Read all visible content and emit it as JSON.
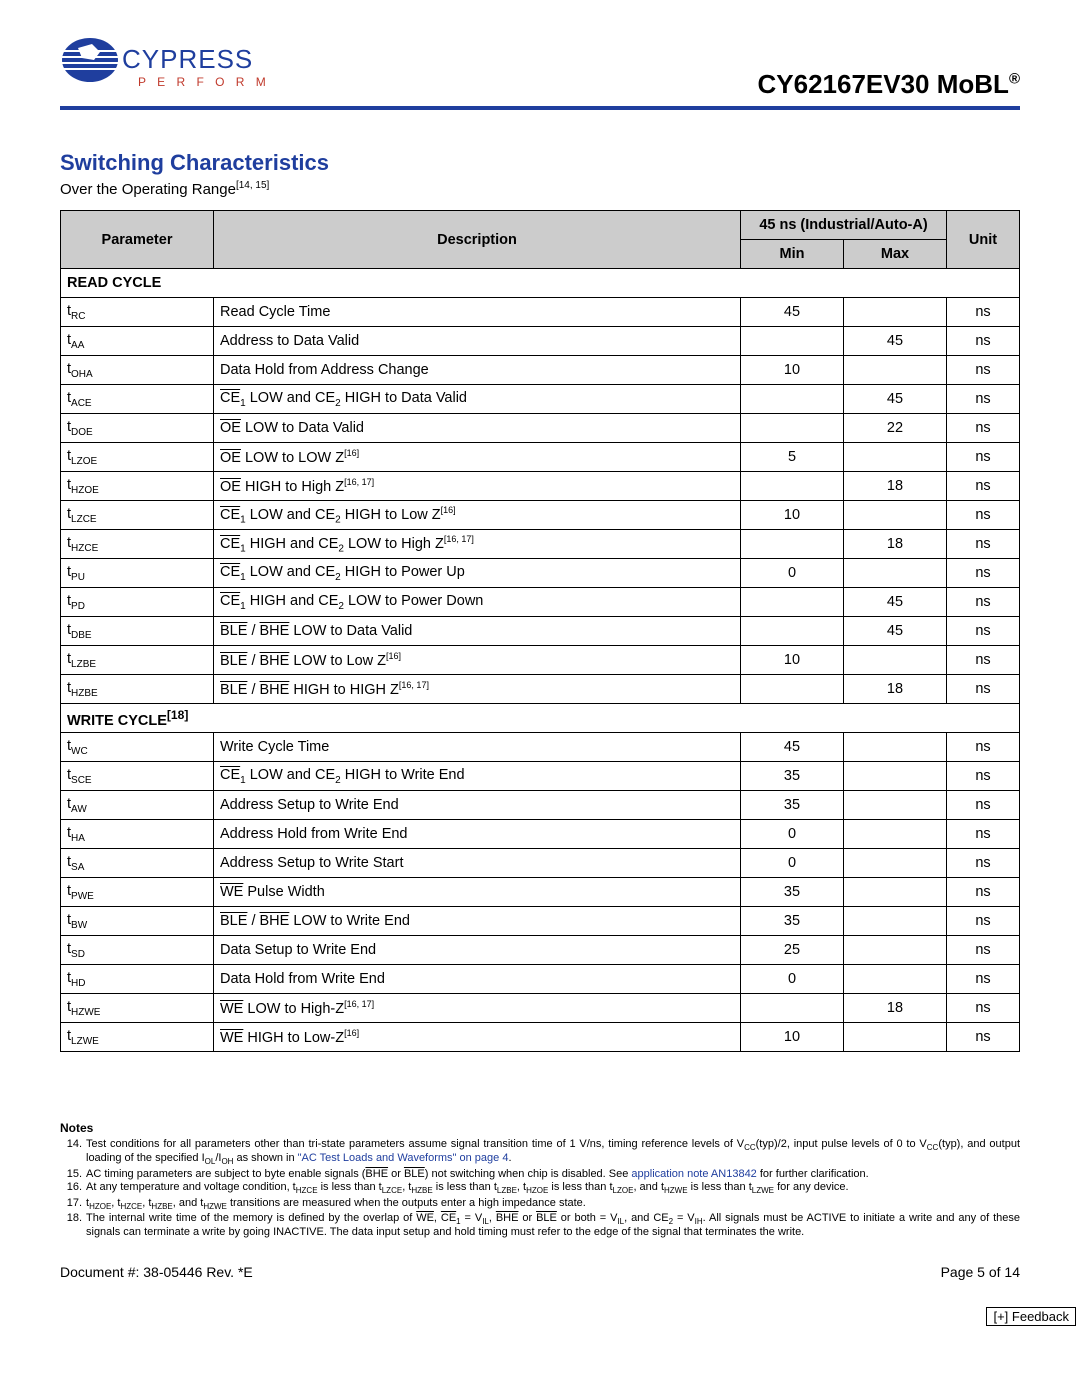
{
  "header": {
    "brand_top": "CYPRESS",
    "brand_bottom": "P E R F O R M",
    "title_html": "CY62167EV30 MoBL<sup>®</sup>"
  },
  "section": {
    "title": "Switching Characteristics",
    "subtitle_html": "Over the Operating Range<sup>[14, 15]</sup>"
  },
  "table": {
    "head": {
      "parameter": "Parameter",
      "description": "Description",
      "group": "45 ns (Industrial/Auto-A)",
      "min": "Min",
      "max": "Max",
      "unit": "Unit"
    },
    "colors": {
      "header_bg": "#cccccc",
      "border": "#000000"
    },
    "sections": [
      {
        "label_html": "READ CYCLE",
        "rows": [
          {
            "p": "t<sub>RC</sub>",
            "d": "Read Cycle Time",
            "min": "45",
            "max": "",
            "u": "ns"
          },
          {
            "p": "t<sub>AA</sub>",
            "d": "Address to Data Valid",
            "min": "",
            "max": "45",
            "u": "ns"
          },
          {
            "p": "t<sub>OHA</sub>",
            "d": "Data Hold from Address Change",
            "min": "10",
            "max": "",
            "u": "ns"
          },
          {
            "p": "t<sub>ACE</sub>",
            "d": "<span class='ov'>CE</span><sub>1</sub> LOW and CE<sub>2</sub> HIGH to Data Valid",
            "min": "",
            "max": "45",
            "u": "ns"
          },
          {
            "p": "t<sub>DOE</sub>",
            "d": "<span class='ov'>OE</span> LOW to Data Valid",
            "min": "",
            "max": "22",
            "u": "ns"
          },
          {
            "p": "t<sub>LZOE</sub>",
            "d": "<span class='ov'>OE</span> LOW to LOW Z<sup>[16]</sup>",
            "min": "5",
            "max": "",
            "u": "ns"
          },
          {
            "p": "t<sub>HZOE</sub>",
            "d": "<span class='ov'>OE</span> HIGH to High Z<sup>[16, 17]</sup>",
            "min": "",
            "max": "18",
            "u": "ns"
          },
          {
            "p": "t<sub>LZCE</sub>",
            "d": "<span class='ov'>CE</span><sub>1</sub> LOW and CE<sub>2</sub> HIGH to Low Z<sup>[16]</sup>",
            "min": "10",
            "max": "",
            "u": "ns"
          },
          {
            "p": "t<sub>HZCE</sub>",
            "d": "<span class='ov'>CE</span><sub>1</sub> HIGH and CE<sub>2</sub> LOW to High Z<sup>[16, 17]</sup>",
            "min": "",
            "max": "18",
            "u": "ns"
          },
          {
            "p": "t<sub>PU</sub>",
            "d": "<span class='ov'>CE</span><sub>1</sub> LOW and CE<sub>2</sub> HIGH to Power Up",
            "min": "0",
            "max": "",
            "u": "ns"
          },
          {
            "p": "t<sub>PD</sub>",
            "d": "<span class='ov'>CE</span><sub>1</sub> HIGH and CE<sub>2</sub> LOW to Power Down",
            "min": "",
            "max": "45",
            "u": "ns"
          },
          {
            "p": "t<sub>DBE</sub>",
            "d": "<span class='ov'>BLE</span> / <span class='ov'>BHE</span> LOW to Data Valid",
            "min": "",
            "max": "45",
            "u": "ns"
          },
          {
            "p": "t<sub>LZBE</sub>",
            "d": "<span class='ov'>BLE</span> / <span class='ov'>BHE</span> LOW to Low Z<sup>[16]</sup>",
            "min": "10",
            "max": "",
            "u": "ns"
          },
          {
            "p": "t<sub>HZBE</sub>",
            "d": "<span class='ov'>BLE</span> / <span class='ov'>BHE</span> HIGH to HIGH Z<sup>[16, 17]</sup>",
            "min": "",
            "max": "18",
            "u": "ns"
          }
        ]
      },
      {
        "label_html": "WRITE CYCLE<sup>[18]</sup>",
        "rows": [
          {
            "p": "t<sub>WC</sub>",
            "d": "Write Cycle Time",
            "min": "45",
            "max": "",
            "u": "ns"
          },
          {
            "p": "t<sub>SCE</sub>",
            "d": "<span class='ov'>CE</span><sub>1</sub> LOW and CE<sub>2</sub> HIGH to Write End",
            "min": "35",
            "max": "",
            "u": "ns"
          },
          {
            "p": "t<sub>AW</sub>",
            "d": "Address Setup to Write End",
            "min": "35",
            "max": "",
            "u": "ns"
          },
          {
            "p": "t<sub>HA</sub>",
            "d": "Address Hold from Write End",
            "min": "0",
            "max": "",
            "u": "ns"
          },
          {
            "p": "t<sub>SA</sub>",
            "d": "Address Setup to Write Start",
            "min": "0",
            "max": "",
            "u": "ns"
          },
          {
            "p": "t<sub>PWE</sub>",
            "d": "<span class='ov'>WE</span> Pulse Width",
            "min": "35",
            "max": "",
            "u": "ns"
          },
          {
            "p": "t<sub>BW</sub>",
            "d": "<span class='ov'>BLE</span> / <span class='ov'>BHE</span> LOW to Write End",
            "min": "35",
            "max": "",
            "u": "ns"
          },
          {
            "p": "t<sub>SD</sub>",
            "d": "Data Setup to Write End",
            "min": "25",
            "max": "",
            "u": "ns"
          },
          {
            "p": "t<sub>HD</sub>",
            "d": "Data Hold from Write End",
            "min": "0",
            "max": "",
            "u": "ns"
          },
          {
            "p": "t<sub>HZWE</sub>",
            "d": "<span class='ov'>WE</span> LOW to High-Z<sup>[16, 17]</sup>",
            "min": "",
            "max": "18",
            "u": "ns"
          },
          {
            "p": "t<sub>LZWE</sub>",
            "d": "<span class='ov'>WE</span> HIGH to Low-Z<sup>[16]</sup>",
            "min": "10",
            "max": "",
            "u": "ns"
          }
        ]
      }
    ]
  },
  "notes": {
    "heading": "Notes",
    "items": [
      {
        "n": "14.",
        "t": "Test conditions for all parameters other than tri-state parameters assume signal transition time of 1 V/ns, timing reference levels of V<sub>CC</sub>(typ)/2, input pulse levels of 0 to V<sub>CC</sub>(typ), and output loading of the specified I<sub>OL</sub>/I<sub>OH</sub> as shown in <a class='link' href='#'>\"AC Test Loads and Waveforms\" on page 4</a>."
      },
      {
        "n": "15.",
        "t": "AC timing parameters are subject to byte enable signals (<span class='ov'>BHE</span> or <span class='ov'>BLE</span>) not switching when chip is disabled. See <a class='link' href='#'>application note AN13842</a> for further clarification."
      },
      {
        "n": "16.",
        "t": "At any temperature and voltage condition, t<sub>HZCE</sub> is less than t<sub>LZCE</sub>, t<sub>HZBE</sub> is less than t<sub>LZBE</sub>, t<sub>HZOE</sub> is less than t<sub>LZOE</sub>, and t<sub>HZWE</sub> is less than t<sub>LZWE</sub> for any device."
      },
      {
        "n": "17.",
        "t": "t<sub>HZOE</sub>, t<sub>HZCE</sub>, t<sub>HZBE</sub>, and t<sub>HZWE</sub> transitions are measured when the outputs enter a high impedance state."
      },
      {
        "n": "18.",
        "t": "The internal write time of the memory is defined by the overlap of <span class='ov'>WE</span>, <span class='ov'>CE</span><sub>1</sub> = V<sub>IL</sub>, <span class='ov'>BHE</span> or <span class='ov'>BLE</span> or both = V<sub>IL</sub>, and CE<sub>2</sub> = V<sub>IH</sub>. All signals must be ACTIVE to initiate a write and any of these signals can terminate a write by going INACTIVE. The data input setup and hold timing must refer to the edge of the signal that terminates the write."
      }
    ]
  },
  "footer": {
    "left": "Document #: 38-05446 Rev. *E",
    "right": "Page 5 of 14",
    "feedback": "[+] Feedback"
  }
}
